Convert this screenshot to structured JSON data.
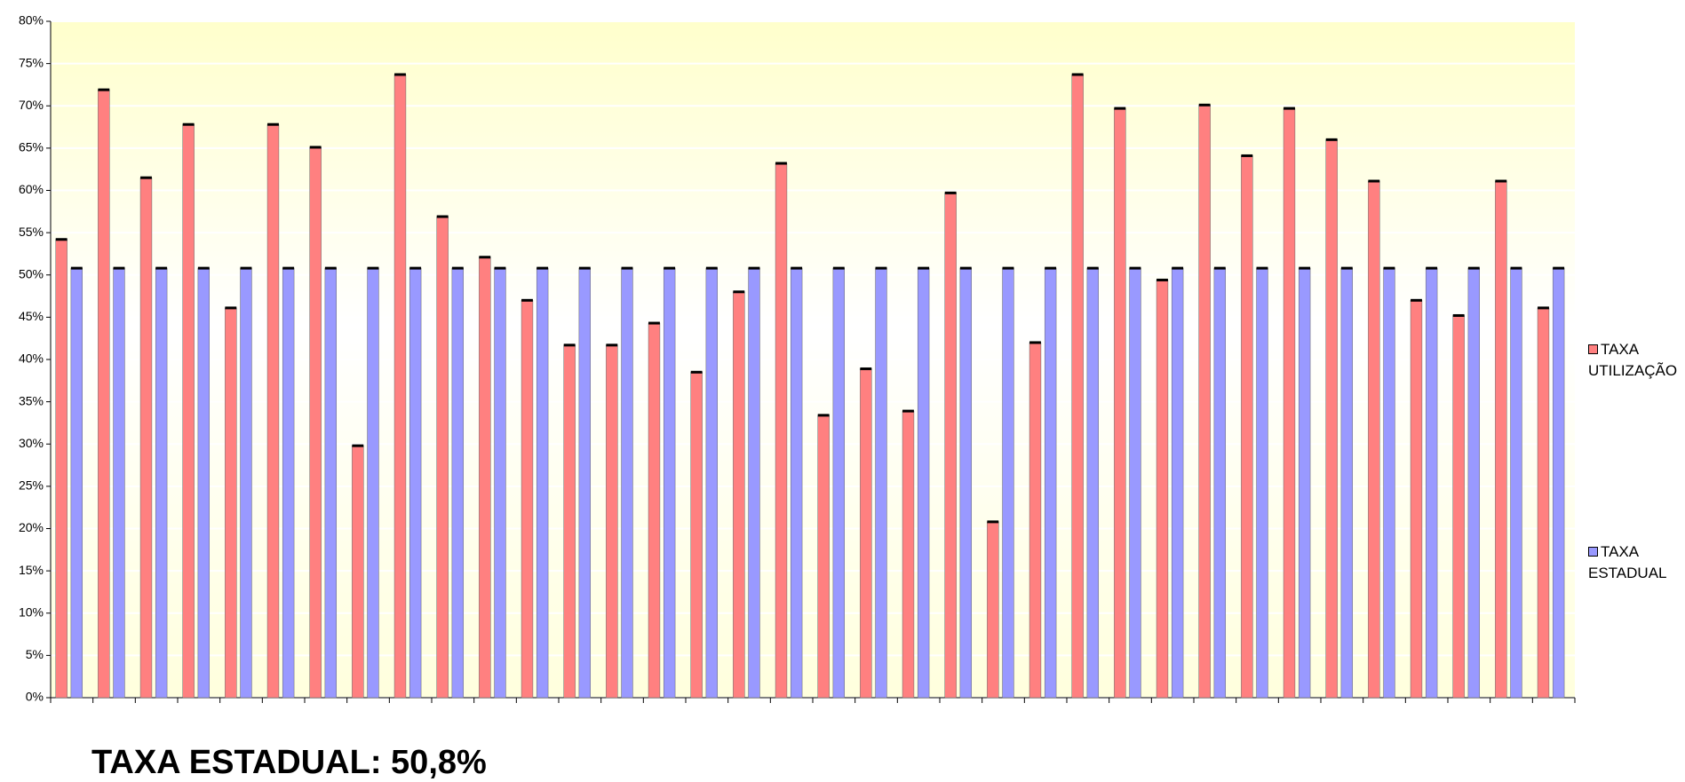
{
  "chart_data": {
    "type": "bar",
    "categories": [
      null,
      null,
      null,
      null,
      null,
      null,
      null,
      null,
      null,
      null,
      null,
      null,
      null,
      null,
      null,
      null,
      null,
      null,
      null,
      null,
      null,
      null,
      null,
      null,
      null,
      null,
      null,
      null,
      null,
      null,
      null,
      null,
      null,
      null,
      null,
      null
    ],
    "series": [
      {
        "name": "TAXA UTILIZAÇÃO",
        "color": "#ff8080",
        "values": [
          54.2,
          71.9,
          61.5,
          67.8,
          46.1,
          67.8,
          65.1,
          29.8,
          73.7,
          56.9,
          52.1,
          47,
          41.7,
          41.7,
          44.3,
          38.5,
          48,
          63.2,
          33.4,
          38.9,
          33.9,
          59.7,
          20.8,
          42,
          73.7,
          69.7,
          49.4,
          70.1,
          64.1,
          69.7,
          66,
          61.1,
          47,
          45.2,
          61.1,
          46.1
        ]
      },
      {
        "name": "TAXA ESTADUAL",
        "color": "#9999ff",
        "values": [
          50.8,
          50.8,
          50.8,
          50.8,
          50.8,
          50.8,
          50.8,
          50.8,
          50.8,
          50.8,
          50.8,
          50.8,
          50.8,
          50.8,
          50.8,
          50.8,
          50.8,
          50.8,
          50.8,
          50.8,
          50.8,
          50.8,
          50.8,
          50.8,
          50.8,
          50.8,
          50.8,
          50.8,
          50.8,
          50.8,
          50.8,
          50.8,
          50.8,
          50.8,
          50.8,
          50.8
        ]
      }
    ],
    "ylim": [
      0,
      80
    ],
    "yticks": [
      {
        "value": 0,
        "label": "0%"
      },
      {
        "value": 5,
        "label": "5%"
      },
      {
        "value": 10,
        "label": "10%"
      },
      {
        "value": 15,
        "label": "15%"
      },
      {
        "value": 20,
        "label": "20%"
      },
      {
        "value": 25,
        "label": "25%"
      },
      {
        "value": 30,
        "label": "30%"
      },
      {
        "value": 35,
        "label": "35%"
      },
      {
        "value": 40,
        "label": "40%"
      },
      {
        "value": 45,
        "label": "45%"
      },
      {
        "value": 50,
        "label": "50%"
      },
      {
        "value": 55,
        "label": "55%"
      },
      {
        "value": 60,
        "label": "60%"
      },
      {
        "value": 65,
        "label": "65%"
      },
      {
        "value": 70,
        "label": "70%"
      },
      {
        "value": 75,
        "label": "75%"
      },
      {
        "value": 80,
        "label": "80%"
      }
    ],
    "grid": true,
    "legend": "right",
    "annotation": "TAXA ESTADUAL: 50,8%"
  }
}
